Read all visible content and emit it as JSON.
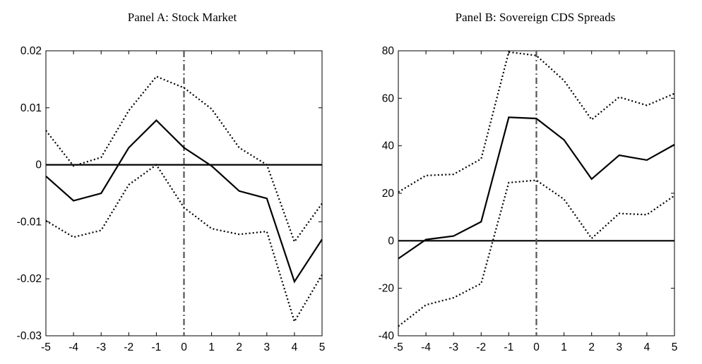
{
  "chart_data": [
    {
      "type": "line",
      "title": "Panel A: Stock Market",
      "x": [
        -5,
        -4,
        -3,
        -2,
        -1,
        0,
        1,
        2,
        3,
        4,
        5
      ],
      "xlim": [
        -5,
        5
      ],
      "ylim": [
        -0.03,
        0.02
      ],
      "xticks": [
        "-5",
        "-4",
        "-3",
        "-2",
        "-1",
        "0",
        "1",
        "2",
        "3",
        "4",
        "5"
      ],
      "yticks": [
        "-0.03",
        "-0.02",
        "-0.01",
        "0",
        "0.01",
        "0.02"
      ],
      "ytick_values": [
        -0.03,
        -0.02,
        -0.01,
        0,
        0.01,
        0.02
      ],
      "series": [
        {
          "role": "estimate",
          "style": "solid",
          "values": [
            -0.002,
            -0.0063,
            -0.005,
            0.003,
            0.0078,
            0.003,
            -0.0002,
            -0.0046,
            -0.0059,
            -0.0205,
            -0.0131
          ]
        },
        {
          "role": "upper",
          "style": "dotted",
          "values": [
            0.006,
            -0.0002,
            0.0013,
            0.0095,
            0.0155,
            0.0135,
            0.0098,
            0.003,
            0.0,
            -0.0135,
            -0.0068
          ]
        },
        {
          "role": "lower",
          "style": "dotted",
          "values": [
            -0.0098,
            -0.0127,
            -0.0115,
            -0.0035,
            0.0,
            -0.0075,
            -0.0112,
            -0.0122,
            -0.0117,
            -0.0275,
            -0.0193
          ]
        }
      ],
      "hlines": [
        0
      ],
      "vlines": [
        0
      ],
      "grid": false
    },
    {
      "type": "line",
      "title": "Panel B: Sovereign CDS Spreads",
      "x": [
        -5,
        -4,
        -3,
        -2,
        -1,
        0,
        1,
        2,
        3,
        4,
        5
      ],
      "xlim": [
        -5,
        5
      ],
      "ylim": [
        -40,
        80
      ],
      "xticks": [
        "-5",
        "-4",
        "-3",
        "-2",
        "-1",
        "0",
        "1",
        "2",
        "3",
        "4",
        "5"
      ],
      "yticks": [
        "-40",
        "-20",
        "0",
        "20",
        "40",
        "60",
        "80"
      ],
      "ytick_values": [
        -40,
        -20,
        0,
        20,
        40,
        60,
        80
      ],
      "series": [
        {
          "role": "estimate",
          "style": "solid",
          "values": [
            -7.5,
            0.5,
            2,
            8,
            52,
            51.5,
            42.5,
            26,
            36,
            34,
            40.5
          ]
        },
        {
          "role": "upper",
          "style": "dotted",
          "values": [
            20.5,
            27.5,
            28,
            34.5,
            79.5,
            78,
            67.5,
            51,
            60.5,
            57,
            62
          ]
        },
        {
          "role": "lower",
          "style": "dotted",
          "values": [
            -36,
            -27,
            -24,
            -18,
            24.5,
            25.5,
            17.5,
            1,
            11.5,
            11,
            19
          ]
        }
      ],
      "hlines": [
        0
      ],
      "vlines": [
        0
      ],
      "grid": false
    }
  ]
}
